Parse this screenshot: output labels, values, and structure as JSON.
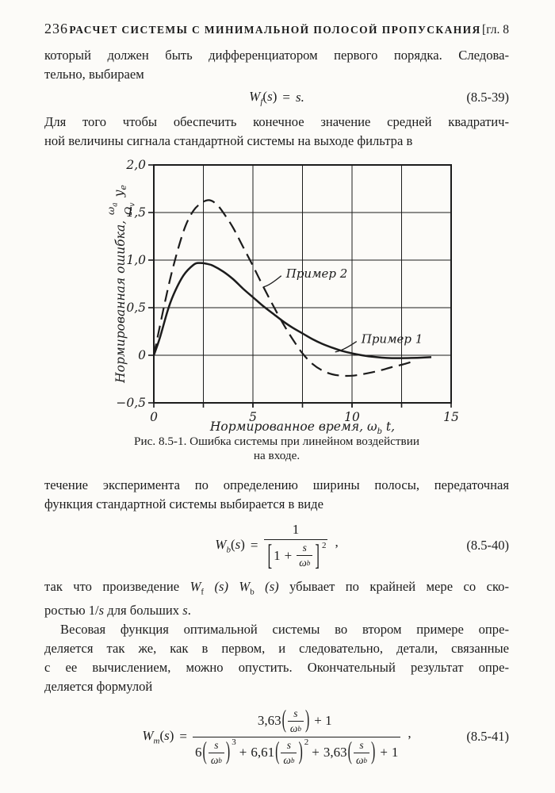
{
  "header": {
    "page_number": "236",
    "running_title": "РАСЧЕТ СИСТЕМЫ С МИНИМАЛЬНОЙ ПОЛОСОЙ ПРОПУСКАНИЯ",
    "chapter": "[гл. 8"
  },
  "paragraphs": {
    "p1": {
      "l1": "который должен быть дифференциатором первого порядка. Следова-",
      "l2": "тельно, выбираем"
    },
    "p2": {
      "l1": "Для того чтобы обеспечить конечное значение средней квадратич-",
      "l2": "ной величины сигнала стандартной системы на выходе фильтра в"
    },
    "p3": {
      "l1": "течение эксперимента по определению ширины полосы, передаточная",
      "l2": "функция стандартной системы выбирается в виде"
    },
    "p4": {
      "seg1": "так что произведение ",
      "W1": "W",
      "W1sub": "f",
      "arg1": " (s) ",
      "W2": "W",
      "W2sub": "b",
      "arg2": " (s)",
      "seg2": " убывает по крайней мере со ско-",
      "seg3": "ростью 1/",
      "s1": "s",
      "seg4": " для больших ",
      "s2": "s",
      "dot": "."
    },
    "p5": {
      "l1": "Весовая функция оптимальной системы во втором примере опре-",
      "l2": "деляется так же, как в первом, и следовательно, детали, связанные",
      "l3": "с ее вычислением, можно опустить. Окончательный результат опре-",
      "l4": "деляется формулой"
    }
  },
  "equations": {
    "eq39": {
      "W": "W",
      "sub": "f",
      "open": "(",
      "s": "s",
      "close": ")",
      "eq": "=",
      "rhs": "s.",
      "number": "(8.5-39)"
    },
    "eq40": {
      "W": "W",
      "sub": "b",
      "open": "(",
      "s": "s",
      "close": ")",
      "eq": "=",
      "num": "1",
      "one": "1",
      "plus": "+",
      "inner_s": "s",
      "inner_om": "ω",
      "inner_om_sub": "b",
      "lbr": "[",
      "rbr": "]",
      "exp": "2",
      "comma": ",",
      "number": "(8.5-40)"
    },
    "eq41": {
      "W": "W",
      "sub": "m",
      "open": "(",
      "s": "s",
      "close": ")",
      "eq": "=",
      "num_coef": "3,63",
      "num_tail": "+ 1",
      "t1_coef": "6",
      "t1_exp": "3",
      "t2_op": "+",
      "t2_coef": "6,61",
      "t2_exp": "2",
      "t3_op": "+",
      "t3_coef": "3,63",
      "t4_op": "+",
      "t4_const": "1",
      "inner_s": "s",
      "inner_om": "ω",
      "inner_om_sub": "b",
      "comma": ",",
      "number": "(8.5-41)"
    }
  },
  "figure": {
    "ylabel": {
      "text": "Нормированная ошибка,",
      "num": "ω",
      "num_sub": "а",
      "den": "Ω",
      "den_sub": "v",
      "tail": "y",
      "tail_sub": "е"
    },
    "caption_line1": "Рис. 8.5-1. Ошибка системы при линейном воздействии",
    "caption_line2": "на входе."
  },
  "chart_data": {
    "type": "line",
    "title": "",
    "xlabel": "Нормированное время, ω_b t,",
    "xlabel_parts": {
      "pre": "Нормированное время, ",
      "omega": "ω",
      "sub": "b",
      "post": " t,"
    },
    "ylabel": "Нормированная ошибка, (ω_а/Ω_v)·y_е",
    "xlim": [
      0,
      15
    ],
    "ylim": [
      -0.5,
      2.0
    ],
    "grid": true,
    "legend_position": "inline-labels",
    "xticks": [
      {
        "v": 0,
        "label": "0"
      },
      {
        "v": 5,
        "label": "5"
      },
      {
        "v": 10,
        "label": "10"
      },
      {
        "v": 15,
        "label": "15"
      }
    ],
    "yticks": [
      {
        "v": 2.0,
        "label": "2,0"
      },
      {
        "v": 1.5,
        "label": "1,5"
      },
      {
        "v": 1.0,
        "label": "1,0"
      },
      {
        "v": 0.5,
        "label": "0,5"
      },
      {
        "v": 0,
        "label": "0"
      },
      {
        "v": -0.5,
        "label": "−0,5"
      }
    ],
    "xgrid": [
      2.5,
      5,
      7.5,
      10,
      12.5
    ],
    "ygrid": [
      0,
      0.5,
      1.0,
      1.5
    ],
    "series": [
      {
        "name": "Пример 1",
        "style": "solid",
        "points": [
          [
            0,
            0
          ],
          [
            0.3,
            0.18
          ],
          [
            0.7,
            0.47
          ],
          [
            1,
            0.64
          ],
          [
            1.5,
            0.84
          ],
          [
            2,
            0.95
          ],
          [
            2.3,
            0.97
          ],
          [
            2.7,
            0.96
          ],
          [
            3,
            0.94
          ],
          [
            3.5,
            0.88
          ],
          [
            4,
            0.8
          ],
          [
            4.5,
            0.7
          ],
          [
            5,
            0.61
          ],
          [
            5.5,
            0.52
          ],
          [
            6,
            0.44
          ],
          [
            6.5,
            0.36
          ],
          [
            7,
            0.29
          ],
          [
            7.5,
            0.23
          ],
          [
            8,
            0.17
          ],
          [
            8.5,
            0.12
          ],
          [
            9,
            0.08
          ],
          [
            9.5,
            0.045
          ],
          [
            10,
            0.02
          ],
          [
            10.5,
            0
          ],
          [
            11,
            -0.015
          ],
          [
            11.5,
            -0.025
          ],
          [
            12,
            -0.03
          ],
          [
            12.5,
            -0.03
          ],
          [
            13,
            -0.028
          ],
          [
            13.5,
            -0.025
          ],
          [
            14,
            -0.02
          ]
        ]
      },
      {
        "name": "Пример 2",
        "style": "dashed",
        "points": [
          [
            0,
            0
          ],
          [
            0.4,
            0.4
          ],
          [
            0.8,
            0.78
          ],
          [
            1.2,
            1.1
          ],
          [
            1.6,
            1.36
          ],
          [
            2,
            1.52
          ],
          [
            2.4,
            1.6
          ],
          [
            2.8,
            1.63
          ],
          [
            3.2,
            1.58
          ],
          [
            3.6,
            1.47
          ],
          [
            4,
            1.34
          ],
          [
            4.5,
            1.14
          ],
          [
            5,
            0.94
          ],
          [
            5.5,
            0.73
          ],
          [
            6,
            0.53
          ],
          [
            6.5,
            0.34
          ],
          [
            7,
            0.17
          ],
          [
            7.5,
            0.02
          ],
          [
            8,
            -0.09
          ],
          [
            8.5,
            -0.16
          ],
          [
            9,
            -0.2
          ],
          [
            9.5,
            -0.215
          ],
          [
            10,
            -0.215
          ],
          [
            10.5,
            -0.2
          ],
          [
            11,
            -0.18
          ],
          [
            11.5,
            -0.155
          ],
          [
            12,
            -0.125
          ],
          [
            12.5,
            -0.1
          ],
          [
            13,
            -0.07
          ]
        ]
      }
    ],
    "annotations": [
      {
        "text": "Пример 2",
        "label_pos": [
          6.55,
          0.86
        ],
        "arrow_to": [
          5.55,
          0.72
        ]
      },
      {
        "text": "Пример 1",
        "label_pos": [
          10.35,
          0.17
        ],
        "arrow_to": [
          9.15,
          0.035
        ]
      }
    ]
  }
}
